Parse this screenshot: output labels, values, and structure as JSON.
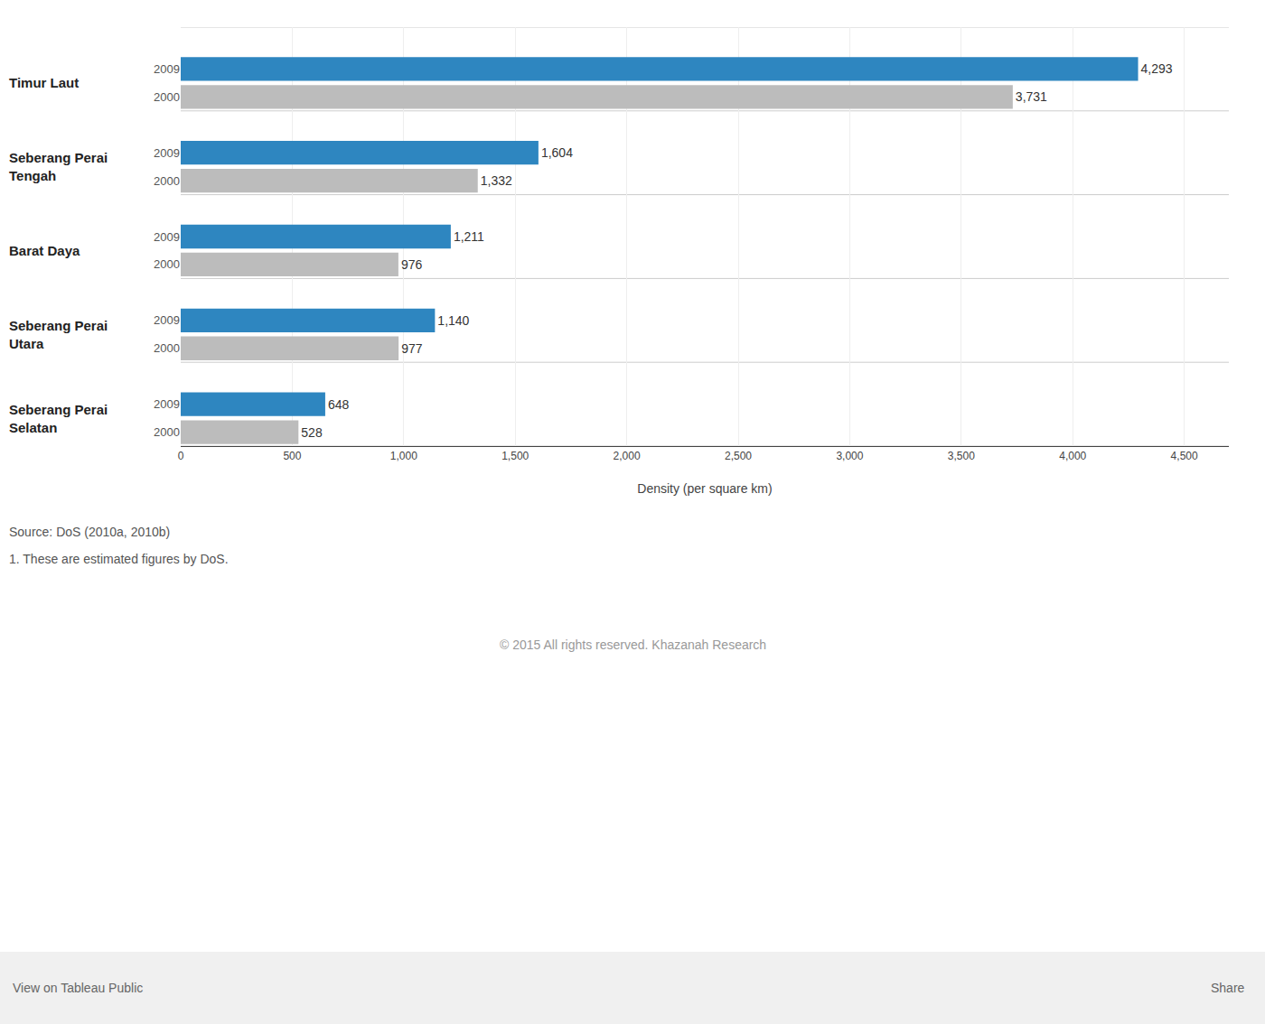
{
  "chart_data": {
    "type": "bar",
    "orientation": "horizontal",
    "categories": [
      "Timur Laut",
      "Seberang Perai\nTengah",
      "Barat Daya",
      "Seberang Perai\nUtara",
      "Seberang Perai\nSelatan"
    ],
    "series": [
      {
        "name": "2009",
        "color": "#2e86c0",
        "values": [
          4293,
          1604,
          1211,
          1140,
          648
        ],
        "value_labels": [
          "4,293",
          "1,604",
          "1,211",
          "1,140",
          "648"
        ]
      },
      {
        "name": "2000",
        "color": "#bcbcbc",
        "values": [
          3731,
          1332,
          976,
          977,
          528
        ],
        "value_labels": [
          "3,731",
          "1,332",
          "976",
          "977",
          "528"
        ]
      }
    ],
    "xlabel": "Density (per square km)",
    "xlim": [
      0,
      4700
    ],
    "xticks": [
      0,
      500,
      {
        "value": 1000,
        "label": "1,000"
      },
      {
        "value": 1500,
        "label": "1,500"
      },
      {
        "value": 2000,
        "label": "2,000"
      },
      {
        "value": 2500,
        "label": "2,500"
      },
      {
        "value": 3000,
        "label": "3,000"
      },
      {
        "value": 3500,
        "label": "3,500"
      },
      {
        "value": 4000,
        "label": "4,000"
      },
      {
        "value": 4500,
        "label": "4,500"
      }
    ],
    "grid": true,
    "data_labels": true,
    "annotations": [
      "Source: DoS (2010a, 2010b)",
      "1. These are estimated figures by DoS.",
      "© 2015 All rights reserved. Khazanah Research",
      "View on Tableau Public",
      "Share"
    ]
  }
}
